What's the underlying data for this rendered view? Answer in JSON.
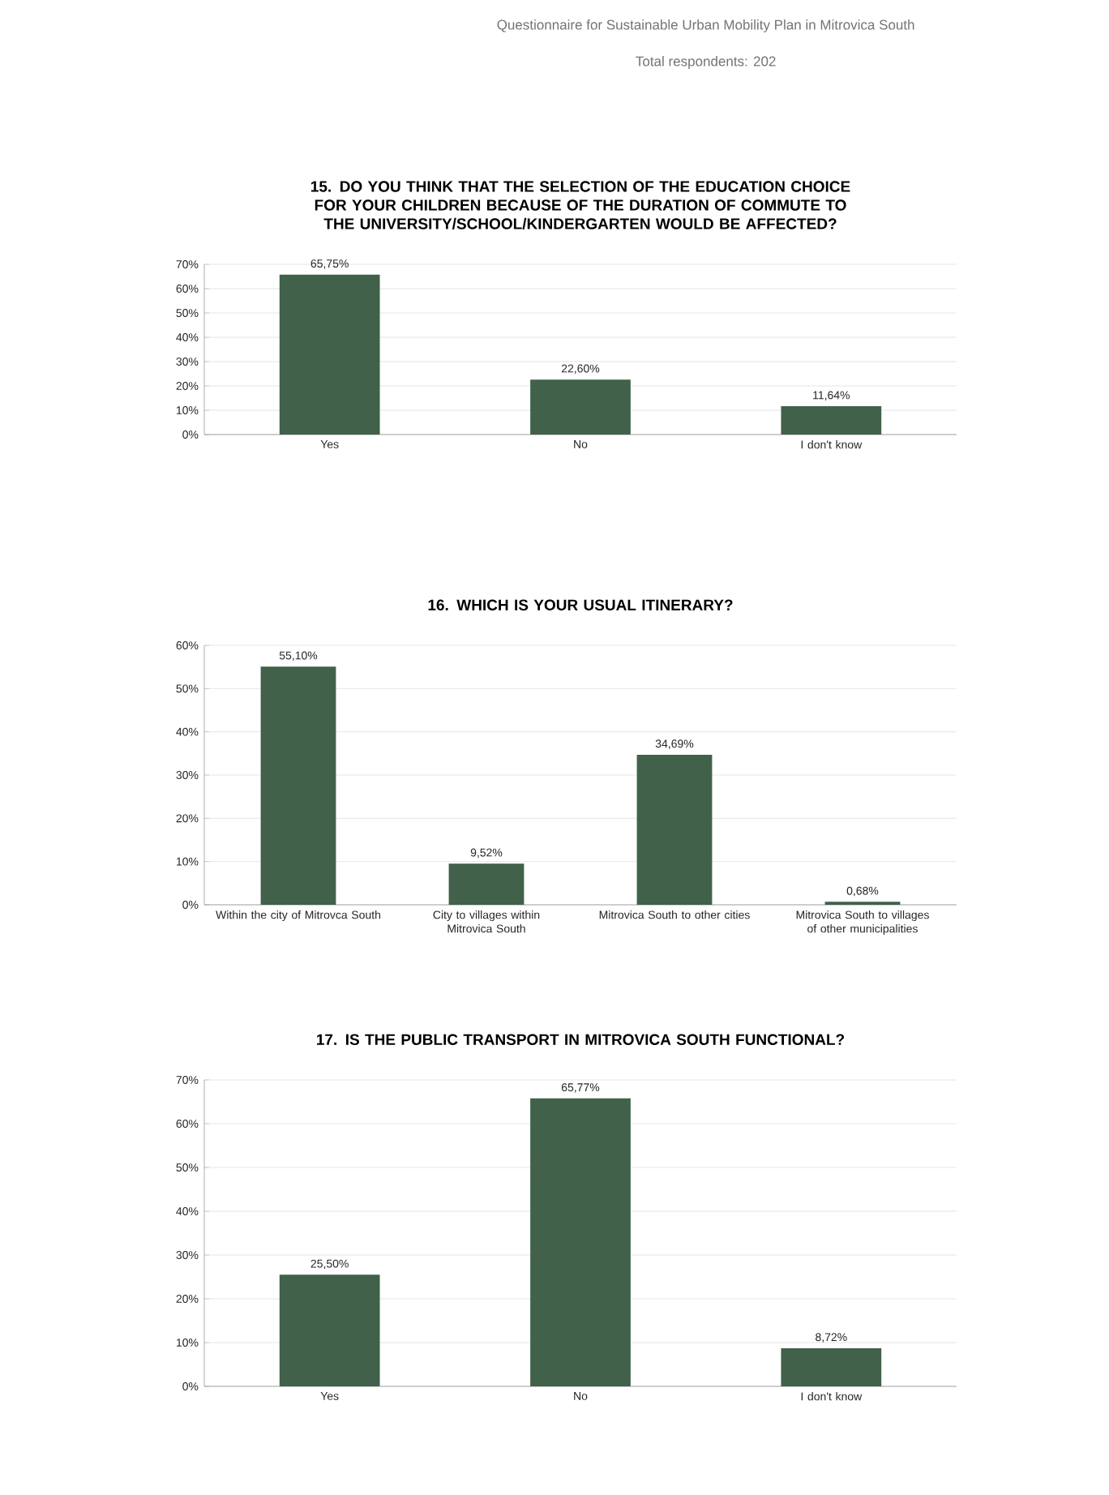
{
  "chart_data": [
    {
      "type": "bar",
      "title": "15. DO YOU THINK THAT THE SELECTION OF THE EDUCATION CHOICE FOR YOUR CHILDREN BECAUSE OF THE DURATION OF COMMUTE TO THE UNIVERSITY/SCHOOL/KINDERGARTEN WOULD BE AFFECTED?",
      "annotations": [
        "Questionnaire for Sustainable Urban Mobility Plan in Mitrovica South",
        "Total respondents: 202"
      ],
      "categories": [
        "Yes",
        "No",
        "I don't know"
      ],
      "values": [
        65.75,
        22.6,
        11.64
      ],
      "value_labels": [
        "65,75%",
        "22,60%",
        "11,64%"
      ],
      "color": "#41614a",
      "ylim": [
        0,
        70
      ],
      "yticks": [
        {
          "value": 0,
          "label": "0%"
        },
        {
          "value": 10,
          "label": "10%"
        },
        {
          "value": 20,
          "label": "20%"
        },
        {
          "value": 30,
          "label": "30%"
        },
        {
          "value": 40,
          "label": "40%"
        },
        {
          "value": 50,
          "label": "50%"
        },
        {
          "value": 60,
          "label": "60%"
        },
        {
          "value": 70,
          "label": "70%"
        }
      ],
      "grid": "y"
    },
    {
      "type": "bar",
      "title": "16. WHICH IS YOUR USUAL ITINERARY?",
      "categories": [
        "Within the city of Mitrovca South",
        "City to villages within Mitrovica South",
        "Mitrovica South to other cities",
        "Mitrovica South to villages of other municipalities"
      ],
      "values": [
        55.1,
        9.52,
        34.69,
        0.68
      ],
      "value_labels": [
        "55,10%",
        "9,52%",
        "34,69%",
        "0,68%"
      ],
      "color": "#41614a",
      "ylim": [
        0,
        60
      ],
      "yticks": [
        {
          "value": 0,
          "label": "0%"
        },
        {
          "value": 10,
          "label": "10%"
        },
        {
          "value": 20,
          "label": "20%"
        },
        {
          "value": 30,
          "label": "30%"
        },
        {
          "value": 40,
          "label": "40%"
        },
        {
          "value": 50,
          "label": "50%"
        },
        {
          "value": 60,
          "label": "60%"
        }
      ],
      "grid": "y"
    },
    {
      "type": "bar",
      "title": "17. IS THE PUBLIC TRANSPORT IN MITROVICA SOUTH FUNCTIONAL?",
      "categories": [
        "Yes",
        "No",
        "I don't know"
      ],
      "values": [
        25.5,
        65.77,
        8.72
      ],
      "value_labels": [
        "25,50%",
        "65,77%",
        "8,72%"
      ],
      "color": "#41614a",
      "ylim": [
        0,
        70
      ],
      "yticks": [
        {
          "value": 0,
          "label": "0%"
        },
        {
          "value": 10,
          "label": "10%"
        },
        {
          "value": 20,
          "label": "20%"
        },
        {
          "value": 30,
          "label": "30%"
        },
        {
          "value": 40,
          "label": "40%"
        },
        {
          "value": 50,
          "label": "50%"
        },
        {
          "value": 60,
          "label": "60%"
        },
        {
          "value": 70,
          "label": "70%"
        }
      ],
      "grid": "y"
    }
  ]
}
